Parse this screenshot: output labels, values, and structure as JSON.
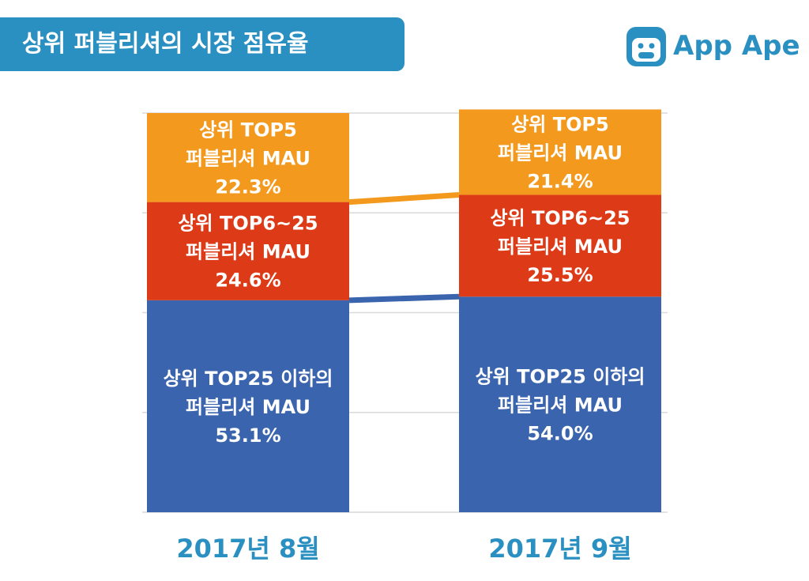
{
  "header": {
    "title": "상위 퍼블리셔의 시장 점유율"
  },
  "logo": {
    "text": "App Ape",
    "icon": "ape-face-icon",
    "color": "#2a8fc1"
  },
  "chart_data": {
    "type": "bar",
    "stacked": true,
    "categories": [
      "2017년 8월",
      "2017년 9월"
    ],
    "ylim": [
      0,
      100
    ],
    "grid": true,
    "series": [
      {
        "name": "상위 TOP25 이하의 퍼블리셔 MAU",
        "values": [
          53.1,
          54.0
        ],
        "color": "#3a64ad",
        "labels": [
          [
            "상위 TOP25 이하의",
            "퍼블리셔 MAU",
            "53.1%"
          ],
          [
            "상위 TOP25 이하의",
            "퍼블리셔 MAU",
            "54.0%"
          ]
        ]
      },
      {
        "name": "상위 TOP6~25 퍼블리셔 MAU",
        "values": [
          24.6,
          25.5
        ],
        "color": "#dd3a17",
        "labels": [
          [
            "상위 TOP6~25",
            "퍼블리셔 MAU",
            "24.6%"
          ],
          [
            "상위 TOP6~25",
            "퍼블리셔 MAU",
            "25.5%"
          ]
        ]
      },
      {
        "name": "상위 TOP5 퍼블리셔 MAU",
        "values": [
          22.3,
          21.4
        ],
        "color": "#f39a1e",
        "labels": [
          [
            "상위 TOP5",
            "퍼블리셔 MAU",
            "22.3%"
          ],
          [
            "상위 TOP5",
            "퍼블리셔 MAU",
            "21.4%"
          ]
        ]
      }
    ]
  }
}
